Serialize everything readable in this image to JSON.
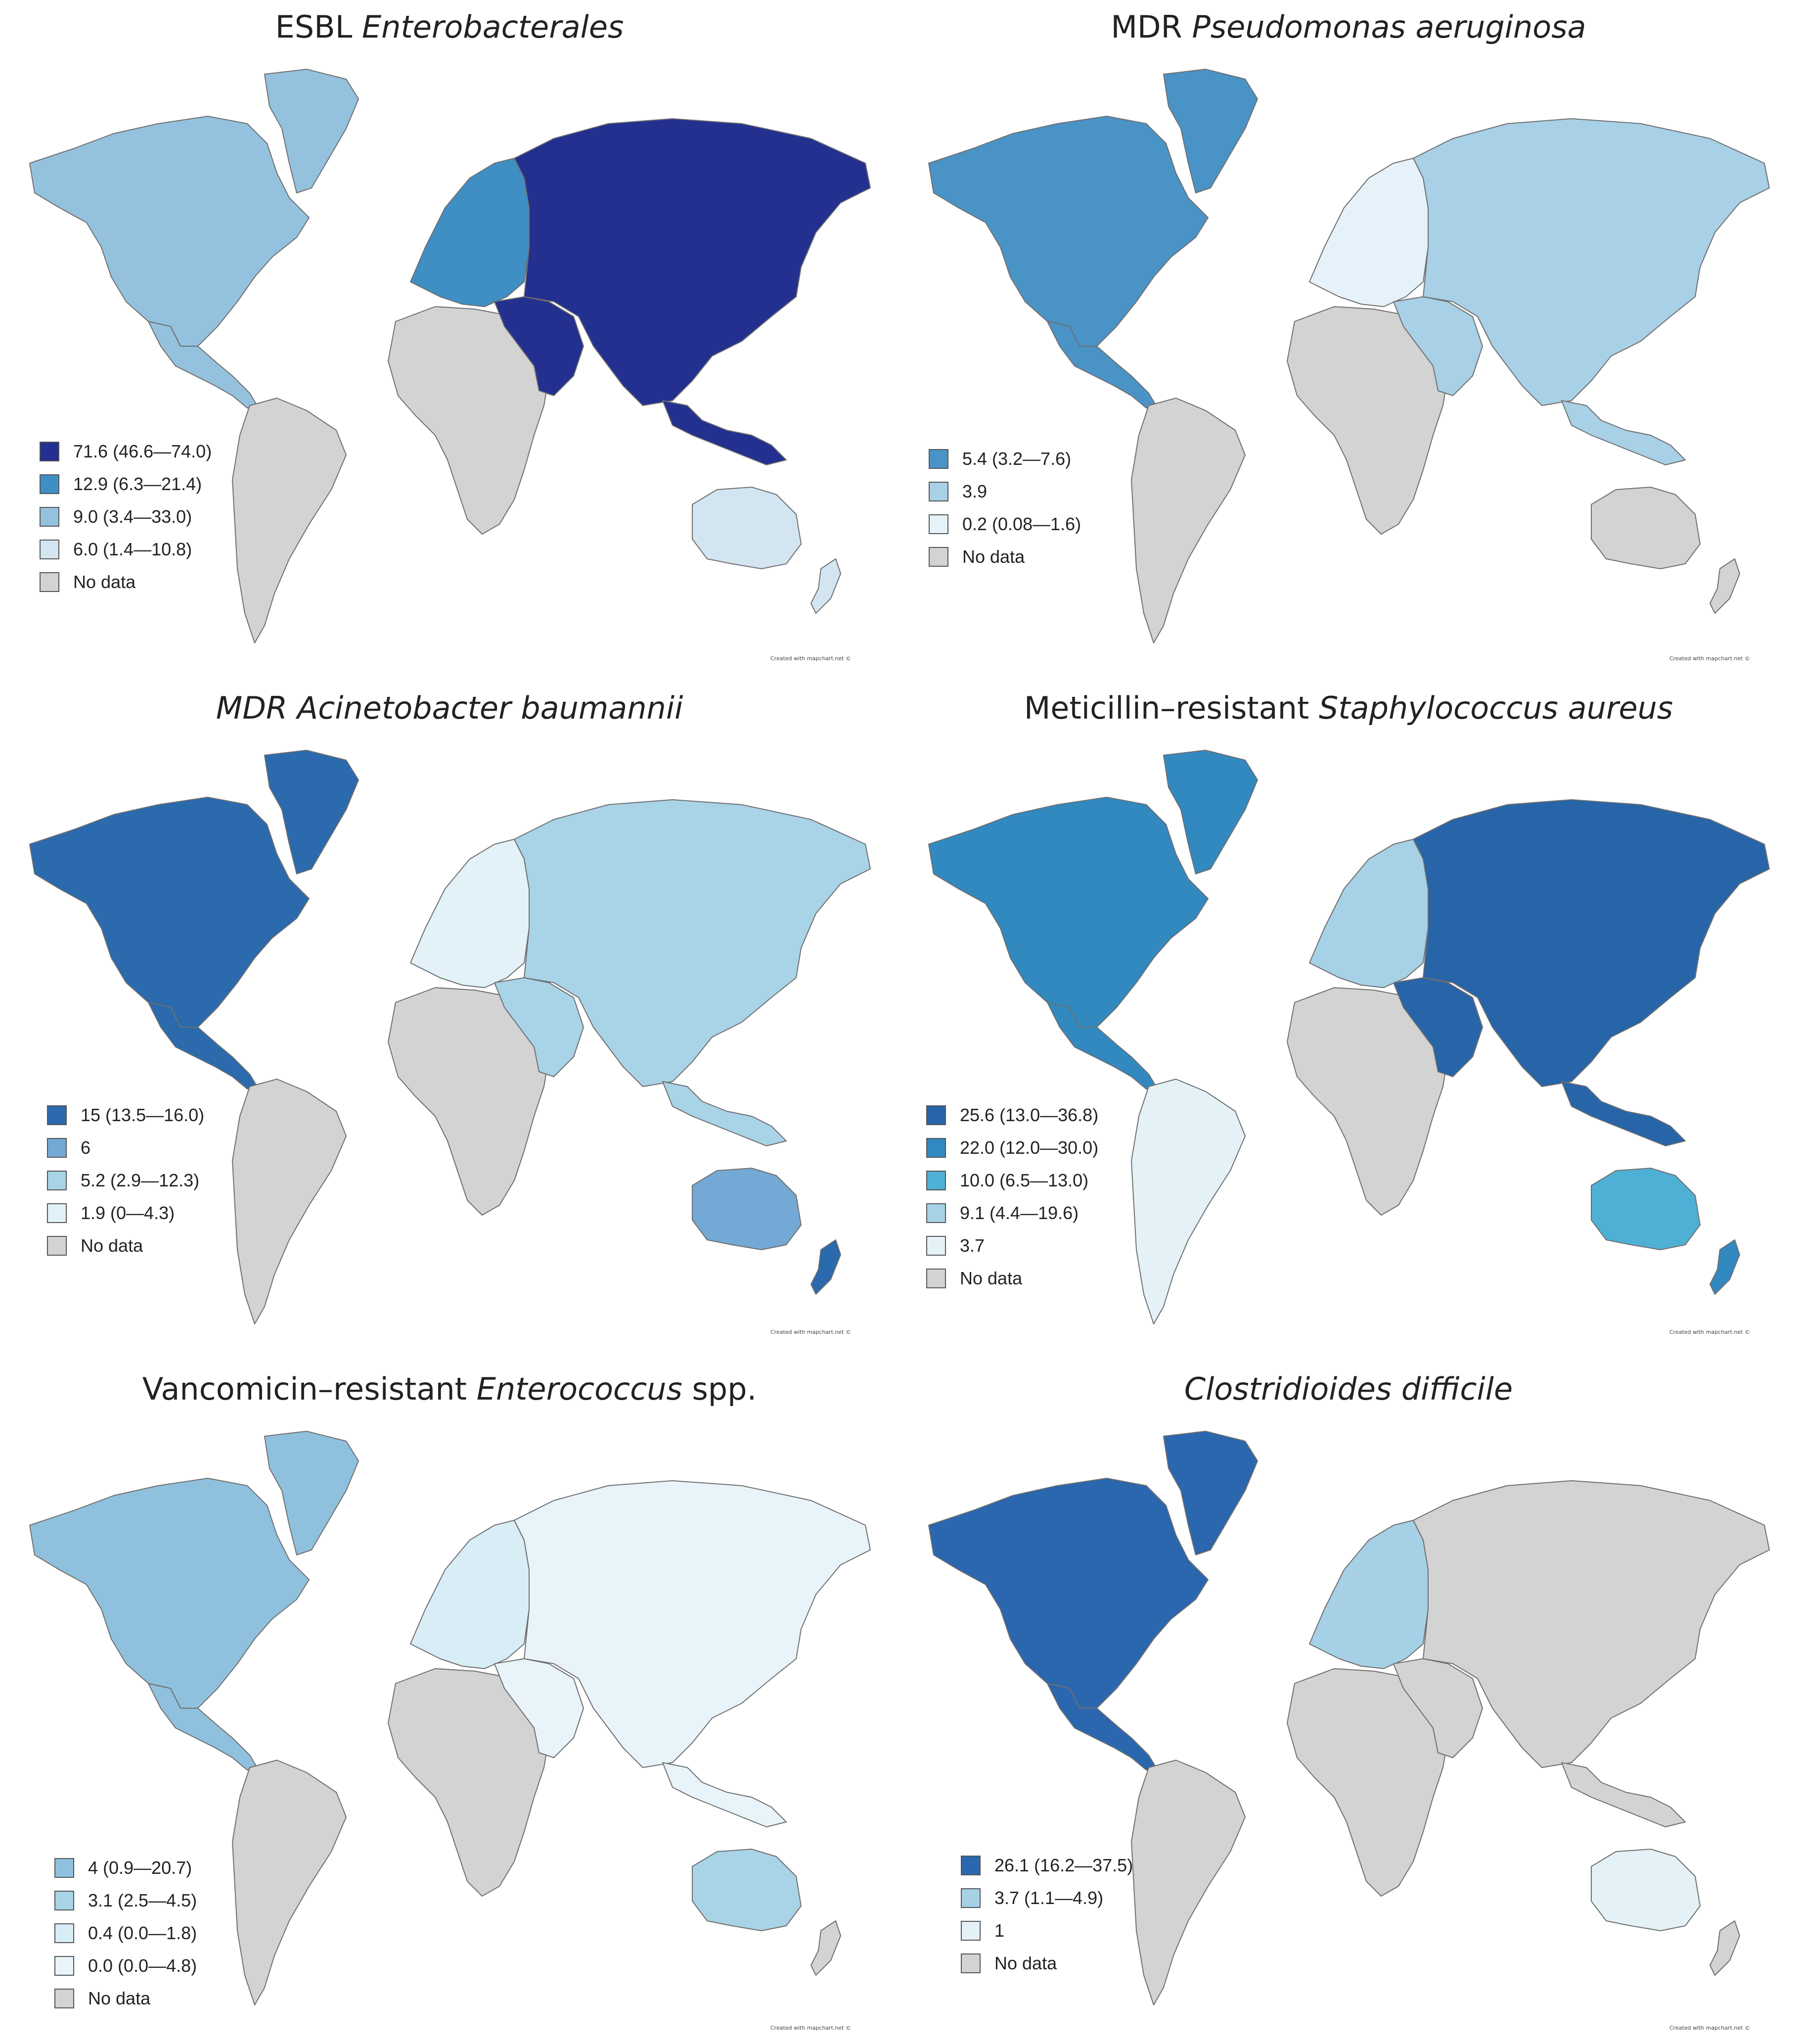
{
  "map_colors": {
    "no_data": "#d3d3d3",
    "border": "#6f6f6f",
    "ocean": "#ffffff"
  },
  "panels": [
    {
      "title_prefix": "ESBL ",
      "title_italic": "Enterobacterales",
      "title_suffix": "",
      "credit": "Created with mapchart.net ©",
      "legend": [
        {
          "label": "71.6 (46.6—74.0)",
          "color": "#24308f"
        },
        {
          "label": "12.9 (6.3—21.4)",
          "color": "#3f8ec4"
        },
        {
          "label": "9.0 (3.4—33.0)",
          "color": "#94c2de"
        },
        {
          "label": "6.0 (1.4—10.8)",
          "color": "#d4e5f2"
        },
        {
          "label": "No data",
          "color": "#d3d3d3"
        }
      ],
      "regions": {
        "north_america": "#94c2de",
        "greenland": "#94c2de",
        "central_america": "#94c2de",
        "south_america": "#d3d3d3",
        "europe": "#3f8ec4",
        "africa": "#d3d3d3",
        "middle_east": "#24308f",
        "asia": "#24308f",
        "southeast_asia": "#24308f",
        "australia": "#d4e5f2",
        "new_zealand": "#d4e5f2"
      }
    },
    {
      "title_prefix": "MDR ",
      "title_italic": "Pseudomonas aeruginosa",
      "title_suffix": "",
      "credit": "Created with mapchart.net ©",
      "legend": [
        {
          "label": "5.4 (3.2—7.6)",
          "color": "#4a93c6"
        },
        {
          "label": "3.9",
          "color": "#a8d0e6"
        },
        {
          "label": "0.2 (0.08—1.6)",
          "color": "#e6f2f9"
        },
        {
          "label": "No data",
          "color": "#d3d3d3"
        }
      ],
      "regions": {
        "north_america": "#4a93c6",
        "greenland": "#4a93c6",
        "central_america": "#4a93c6",
        "south_america": "#d3d3d3",
        "europe": "#e6f2f9",
        "africa": "#d3d3d3",
        "middle_east": "#a8d0e6",
        "asia": "#a8d0e6",
        "southeast_asia": "#a8d0e6",
        "australia": "#d3d3d3",
        "new_zealand": "#d3d3d3"
      }
    },
    {
      "title_prefix": "",
      "title_italic": "MDR Acinetobacter baumannii",
      "title_suffix": "",
      "credit": "Created with mapchart.net ©",
      "legend": [
        {
          "label": "15 (13.5—16.0)",
          "color": "#2a6aad"
        },
        {
          "label": "6",
          "color": "#73a9d4"
        },
        {
          "label": "5.2 (2.9—12.3)",
          "color": "#a9d3e7"
        },
        {
          "label": "1.9 (0—4.3)",
          "color": "#e3f1f8"
        },
        {
          "label": "No data",
          "color": "#d3d3d3"
        }
      ],
      "regions": {
        "north_america": "#2a6aad",
        "greenland": "#2a6aad",
        "central_america": "#2a6aad",
        "south_america": "#d3d3d3",
        "europe": "#e3f1f8",
        "africa": "#d3d3d3",
        "middle_east": "#a9d3e7",
        "asia": "#a9d3e7",
        "southeast_asia": "#a9d3e7",
        "australia": "#73a9d4",
        "new_zealand": "#2a6aad"
      }
    },
    {
      "title_prefix": "Meticillin–resistant ",
      "title_italic": "Staphylococcus aureus",
      "title_suffix": "",
      "credit": "Created with mapchart.net ©",
      "legend": [
        {
          "label": "25.6 (13.0—36.8)",
          "color": "#2865a8"
        },
        {
          "label": "22.0 (12.0—30.0)",
          "color": "#3189c0"
        },
        {
          "label": "10.0 (6.5—13.0)",
          "color": "#4fb0d6"
        },
        {
          "label": "9.1 (4.4—19.6)",
          "color": "#a6d1e6"
        },
        {
          "label": "3.7",
          "color": "#e4f2f8"
        },
        {
          "label": "No data",
          "color": "#d3d3d3"
        }
      ],
      "regions": {
        "north_america": "#3189c0",
        "greenland": "#3189c0",
        "central_america": "#3189c0",
        "south_america": "#e4f2f8",
        "europe": "#a6d1e6",
        "africa": "#d3d3d3",
        "middle_east": "#2865a8",
        "asia": "#2865a8",
        "southeast_asia": "#2865a8",
        "australia": "#4fb0d6",
        "new_zealand": "#3189c0"
      }
    },
    {
      "title_prefix": "Vancomicin–resistant ",
      "title_italic": "Enterococcus",
      "title_suffix": " spp.",
      "credit": "Created with mapchart.net ©",
      "legend": [
        {
          "label": "4 (0.9—20.7)",
          "color": "#8fc1de"
        },
        {
          "label": "3.1 (2.5—4.5)",
          "color": "#a9d3e6"
        },
        {
          "label": "0.4 (0.0—1.8)",
          "color": "#d9edf7"
        },
        {
          "label": "0.0 (0.0—4.8)",
          "color": "#e8f4f9"
        },
        {
          "label": "No data",
          "color": "#d3d3d3"
        }
      ],
      "regions": {
        "north_america": "#8fc1de",
        "greenland": "#8fc1de",
        "central_america": "#8fc1de",
        "south_america": "#d3d3d3",
        "europe": "#d9edf7",
        "africa": "#d3d3d3",
        "middle_east": "#e8f4f9",
        "asia": "#e8f4f9",
        "southeast_asia": "#e8f4f9",
        "australia": "#a9d3e6",
        "new_zealand": "#d3d3d3"
      }
    },
    {
      "title_prefix": "",
      "title_italic": "Clostridioides difficile",
      "title_suffix": "",
      "credit": "Created with mapchart.net ©",
      "legend": [
        {
          "label": "26.1 (16.2—37.5)",
          "color": "#2a67ae"
        },
        {
          "label": "3.7 (1.1—4.9)",
          "color": "#a6d0e6"
        },
        {
          "label": "1",
          "color": "#e4f2f8"
        },
        {
          "label": "No data",
          "color": "#d3d3d3"
        }
      ],
      "regions": {
        "north_america": "#2a67ae",
        "greenland": "#2a67ae",
        "central_america": "#2a67ae",
        "south_america": "#d3d3d3",
        "europe": "#a6d0e6",
        "africa": "#d3d3d3",
        "middle_east": "#d3d3d3",
        "asia": "#d3d3d3",
        "southeast_asia": "#d3d3d3",
        "australia": "#e4f2f8",
        "new_zealand": "#d3d3d3"
      }
    }
  ]
}
